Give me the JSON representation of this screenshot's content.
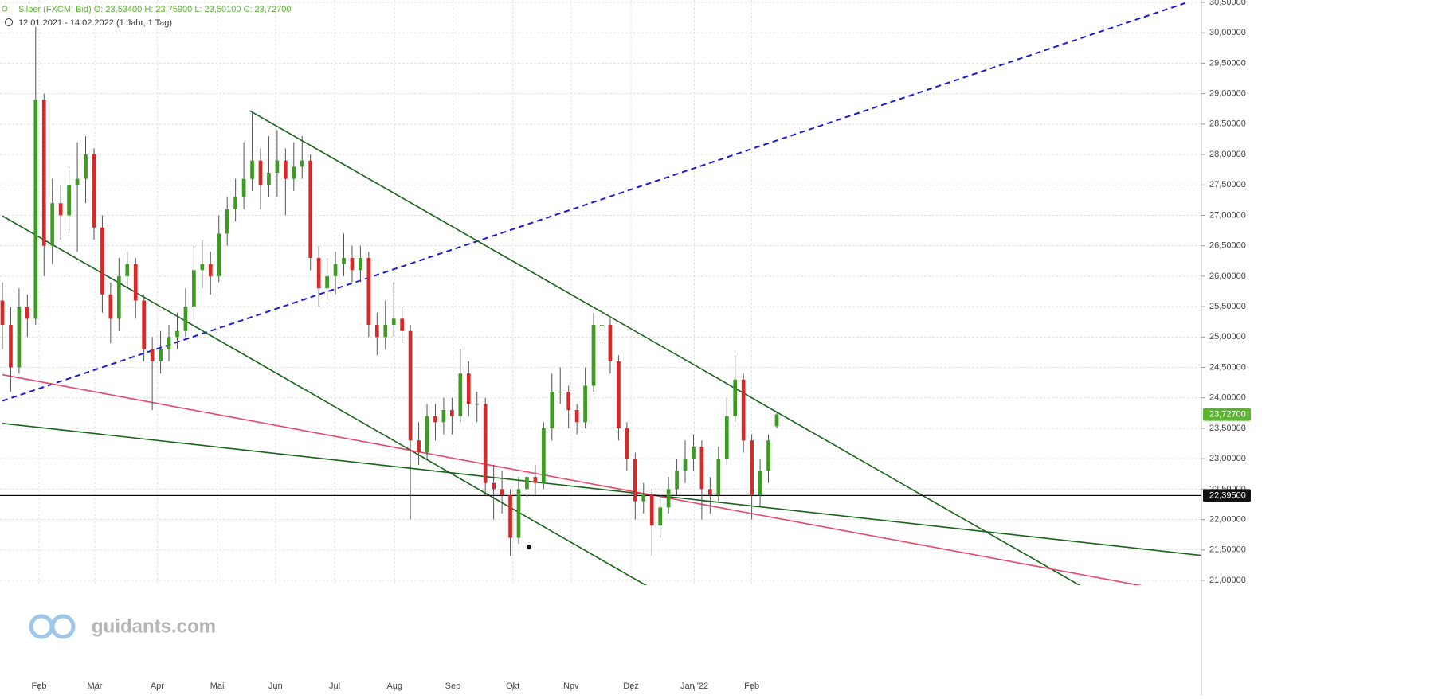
{
  "chart_data": {
    "type": "candlestick",
    "title": "Silber (FXCM, Bid)   O: 23,53400   H: 23,75900   L: 23,50100   C: 23,72700",
    "subtitle": "12.01.2021 - 14.02.2022    (1 Jahr, 1 Tag)",
    "watermark": "guidants.com",
    "up_color": "#3d9b23",
    "down_color": "#d42a2a",
    "grid": true,
    "xlim": [
      0,
      144
    ],
    "ylim": [
      21,
      30.5
    ],
    "xticks": [
      {
        "value": 4.4,
        "label": "Feb"
      },
      {
        "value": 11.1,
        "label": "Mär"
      },
      {
        "value": 18.6,
        "label": "Apr"
      },
      {
        "value": 25.8,
        "label": "Mai"
      },
      {
        "value": 32.8,
        "label": "Jun"
      },
      {
        "value": 39.9,
        "label": "Jul"
      },
      {
        "value": 47.1,
        "label": "Aug"
      },
      {
        "value": 54.1,
        "label": "Sep"
      },
      {
        "value": 61.3,
        "label": "Okt"
      },
      {
        "value": 68.3,
        "label": "Nov"
      },
      {
        "value": 75.5,
        "label": "Dez"
      },
      {
        "value": 83.1,
        "label": "Jan '22"
      },
      {
        "value": 90,
        "label": "Feb"
      }
    ],
    "yticks": [
      {
        "value": 21,
        "label": "21,00000"
      },
      {
        "value": 21.5,
        "label": "21,50000"
      },
      {
        "value": 22,
        "label": "22,00000"
      },
      {
        "value": 22.5,
        "label": "22,50000"
      },
      {
        "value": 23,
        "label": "23,00000"
      },
      {
        "value": 23.5,
        "label": "23,50000"
      },
      {
        "value": 24,
        "label": "24,00000"
      },
      {
        "value": 24.5,
        "label": "24,50000"
      },
      {
        "value": 25,
        "label": "25,00000"
      },
      {
        "value": 25.5,
        "label": "25,50000"
      },
      {
        "value": 26,
        "label": "26,00000"
      },
      {
        "value": 26.5,
        "label": "26,50000"
      },
      {
        "value": 27,
        "label": "27,00000"
      },
      {
        "value": 27.5,
        "label": "27,50000"
      },
      {
        "value": 28,
        "label": "28,00000"
      },
      {
        "value": 28.5,
        "label": "28,50000"
      },
      {
        "value": 29,
        "label": "29,00000"
      },
      {
        "value": 29.5,
        "label": "29,50000"
      },
      {
        "value": 30,
        "label": "30,00000"
      },
      {
        "value": 30.5,
        "label": "30,50000"
      }
    ],
    "candles": [
      [
        25.6,
        25.9,
        24.8,
        25.2
      ],
      [
        25.2,
        25.5,
        24.1,
        24.5
      ],
      [
        24.5,
        25.8,
        24.4,
        25.5
      ],
      [
        25.5,
        25.7,
        25.0,
        25.3
      ],
      [
        25.3,
        30.1,
        25.2,
        28.9
      ],
      [
        28.9,
        29.0,
        26.0,
        26.5
      ],
      [
        26.5,
        27.6,
        26.2,
        27.2
      ],
      [
        27.2,
        27.5,
        26.6,
        27.0
      ],
      [
        27.0,
        27.8,
        26.7,
        27.5
      ],
      [
        27.5,
        28.2,
        26.4,
        27.6
      ],
      [
        27.6,
        28.3,
        27.2,
        28.0
      ],
      [
        28.0,
        28.1,
        26.6,
        26.8
      ],
      [
        26.8,
        27.0,
        25.4,
        25.7
      ],
      [
        25.7,
        25.9,
        24.9,
        25.3
      ],
      [
        25.3,
        26.3,
        25.1,
        26.0
      ],
      [
        26.0,
        26.4,
        25.8,
        26.2
      ],
      [
        26.2,
        26.3,
        25.3,
        25.6
      ],
      [
        25.6,
        25.7,
        24.6,
        24.8
      ],
      [
        24.8,
        25.0,
        23.8,
        24.6
      ],
      [
        24.6,
        25.1,
        24.4,
        24.8
      ],
      [
        24.8,
        25.2,
        24.6,
        25.0
      ],
      [
        25.0,
        25.4,
        24.8,
        25.1
      ],
      [
        25.1,
        25.8,
        25.0,
        25.5
      ],
      [
        25.5,
        26.5,
        25.3,
        26.1
      ],
      [
        26.1,
        26.6,
        25.8,
        26.2
      ],
      [
        26.2,
        26.4,
        25.7,
        26.0
      ],
      [
        26.0,
        27.0,
        25.9,
        26.7
      ],
      [
        26.7,
        27.3,
        26.5,
        27.1
      ],
      [
        27.1,
        27.6,
        26.9,
        27.3
      ],
      [
        27.3,
        28.2,
        27.1,
        27.6
      ],
      [
        27.6,
        28.7,
        27.4,
        27.9
      ],
      [
        27.9,
        28.1,
        27.1,
        27.5
      ],
      [
        27.5,
        28.3,
        27.3,
        27.7
      ],
      [
        27.7,
        28.4,
        27.3,
        27.9
      ],
      [
        27.9,
        28.1,
        27.0,
        27.6
      ],
      [
        27.6,
        28.2,
        27.4,
        27.8
      ],
      [
        27.8,
        28.3,
        27.6,
        27.9
      ],
      [
        27.9,
        28.0,
        26.1,
        26.3
      ],
      [
        26.3,
        26.5,
        25.5,
        25.8
      ],
      [
        25.8,
        26.3,
        25.6,
        26.0
      ],
      [
        26.0,
        26.4,
        25.7,
        26.2
      ],
      [
        26.2,
        26.7,
        26.0,
        26.3
      ],
      [
        26.3,
        26.5,
        25.9,
        26.1
      ],
      [
        26.1,
        26.5,
        25.9,
        26.3
      ],
      [
        26.3,
        26.4,
        25.0,
        25.2
      ],
      [
        25.2,
        25.4,
        24.7,
        25.0
      ],
      [
        25.0,
        25.6,
        24.8,
        25.2
      ],
      [
        25.2,
        25.9,
        25.0,
        25.3
      ],
      [
        25.3,
        25.5,
        24.9,
        25.1
      ],
      [
        25.1,
        25.2,
        22.0,
        23.3
      ],
      [
        23.3,
        23.6,
        22.9,
        23.1
      ],
      [
        23.1,
        23.9,
        23.0,
        23.7
      ],
      [
        23.7,
        23.9,
        23.3,
        23.6
      ],
      [
        23.6,
        24.0,
        23.4,
        23.8
      ],
      [
        23.8,
        24.0,
        23.4,
        23.7
      ],
      [
        23.7,
        24.8,
        23.6,
        24.4
      ],
      [
        24.4,
        24.6,
        23.7,
        23.9
      ],
      [
        23.9,
        24.1,
        23.6,
        23.9
      ],
      [
        23.9,
        24.0,
        22.4,
        22.6
      ],
      [
        22.6,
        22.9,
        22.0,
        22.5
      ],
      [
        22.5,
        22.8,
        22.1,
        22.4
      ],
      [
        22.4,
        22.5,
        21.4,
        21.7
      ],
      [
        21.7,
        22.7,
        21.6,
        22.5
      ],
      [
        22.5,
        22.9,
        22.3,
        22.7
      ],
      [
        22.7,
        22.9,
        22.4,
        22.6
      ],
      [
        22.6,
        23.6,
        22.5,
        23.5
      ],
      [
        23.5,
        24.4,
        23.3,
        24.1
      ],
      [
        24.1,
        24.5,
        23.9,
        24.1
      ],
      [
        24.1,
        24.2,
        23.5,
        23.8
      ],
      [
        23.8,
        23.9,
        23.4,
        23.6
      ],
      [
        23.6,
        24.5,
        23.5,
        24.2
      ],
      [
        24.2,
        25.4,
        24.1,
        25.2
      ],
      [
        25.2,
        25.4,
        24.9,
        25.2
      ],
      [
        25.2,
        25.3,
        24.4,
        24.6
      ],
      [
        24.6,
        24.7,
        23.3,
        23.5
      ],
      [
        23.5,
        23.6,
        22.8,
        23.0
      ],
      [
        23.0,
        23.1,
        22.0,
        22.3
      ],
      [
        22.3,
        22.6,
        22.1,
        22.4
      ],
      [
        22.4,
        22.5,
        21.4,
        21.9
      ],
      [
        21.9,
        22.4,
        21.7,
        22.2
      ],
      [
        22.2,
        22.7,
        22.1,
        22.5
      ],
      [
        22.5,
        23.0,
        22.4,
        22.8
      ],
      [
        22.8,
        23.3,
        22.6,
        23.0
      ],
      [
        23.0,
        23.4,
        22.8,
        23.2
      ],
      [
        23.2,
        23.3,
        22.0,
        22.5
      ],
      [
        22.5,
        22.7,
        22.1,
        22.4
      ],
      [
        22.4,
        23.2,
        22.3,
        23.0
      ],
      [
        23.0,
        24.0,
        22.9,
        23.7
      ],
      [
        23.7,
        24.7,
        23.6,
        24.3
      ],
      [
        24.3,
        24.4,
        23.1,
        23.3
      ],
      [
        23.3,
        23.4,
        22.0,
        22.4
      ],
      [
        22.4,
        23.0,
        22.2,
        22.8
      ],
      [
        22.8,
        23.4,
        22.6,
        23.3
      ],
      [
        23.534,
        23.759,
        23.501,
        23.727
      ]
    ],
    "trendlines": [
      {
        "color": "#1a1adb",
        "dashed": true,
        "x": [
          0,
          142.3
        ],
        "y": [
          23.95,
          30.5
        ]
      },
      {
        "color": "#17641a",
        "dashed": false,
        "x": [
          29.7,
          132.3
        ],
        "y": [
          28.72,
          20.69
        ]
      },
      {
        "color": "#17641a",
        "dashed": false,
        "x": [
          0,
          80.2
        ],
        "y": [
          26.99,
          20.69
        ]
      },
      {
        "color": "#17641a",
        "dashed": false,
        "x": [
          0,
          144
        ],
        "y": [
          23.58,
          21.41
        ]
      },
      {
        "color": "#e8466a",
        "dashed": false,
        "x": [
          0,
          144
        ],
        "y": [
          24.38,
          20.73
        ]
      }
    ],
    "hline": {
      "value": 22.395,
      "label": "22,39500",
      "color": "#111111"
    },
    "last_price": {
      "value": 23.727,
      "label": "23,72700",
      "color": "#5cb531"
    }
  }
}
